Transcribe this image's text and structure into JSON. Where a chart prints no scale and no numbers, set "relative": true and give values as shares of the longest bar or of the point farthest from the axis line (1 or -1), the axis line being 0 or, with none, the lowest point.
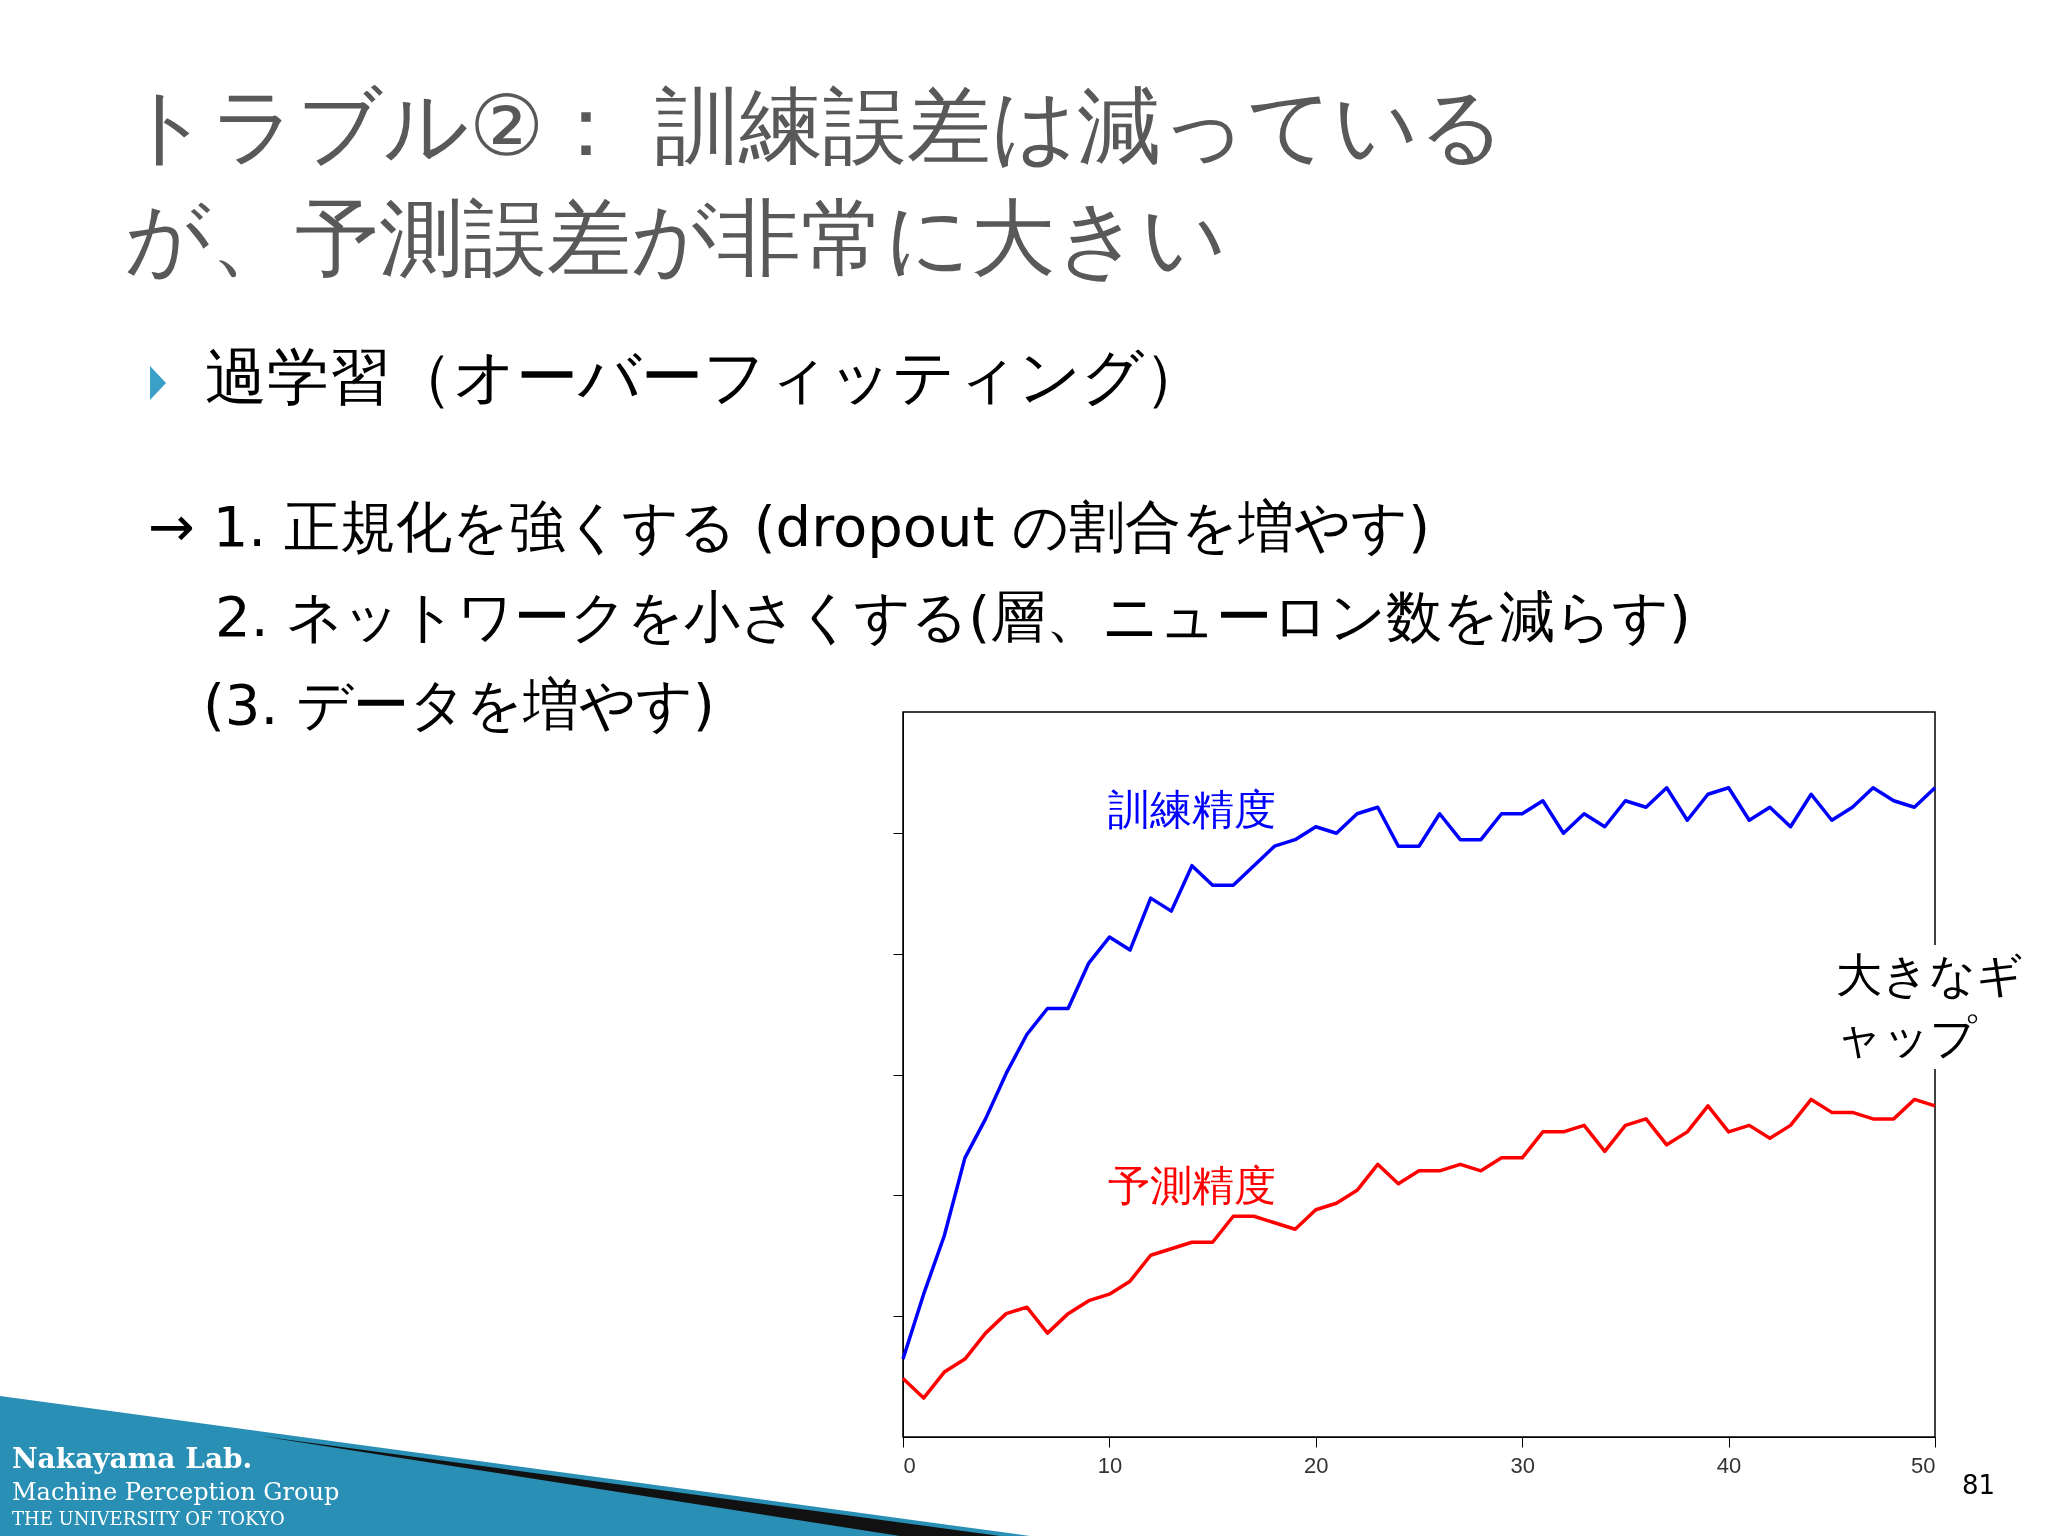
{
  "chart_data": {
    "type": "line",
    "title": "トラブル②： 訓練誤差は減っているが、予測誤差が非常に大きい",
    "annotations": [
      "過学習（オーバーフィッティング）",
      "→ 1. 正規化を強くする (dropout の割合を増やす)",
      "2. ネットワークを小さくする(層、ニューロン数を減らす)",
      "(3. データを増やす)",
      "大きなギャップ",
      "Nakayama Lab.",
      "Machine Perception Group",
      "THE UNIVERSITY OF TOKYO",
      "81"
    ],
    "x": [
      0,
      1,
      2,
      3,
      4,
      5,
      6,
      7,
      8,
      9,
      10,
      11,
      12,
      13,
      14,
      15,
      16,
      17,
      18,
      19,
      20,
      21,
      22,
      23,
      24,
      25,
      26,
      27,
      28,
      29,
      30,
      31,
      32,
      33,
      34,
      35,
      36,
      37,
      38,
      39,
      40,
      41,
      42,
      43,
      44,
      45,
      46,
      47,
      48,
      49,
      50
    ],
    "xlim": [
      0,
      50
    ],
    "xticks": [
      0,
      10,
      20,
      30,
      40,
      50
    ],
    "relative": true,
    "series": [
      {
        "name": "訓練精度",
        "color": "#0000ff",
        "values": [
          0.12,
          0.22,
          0.31,
          0.43,
          0.49,
          0.56,
          0.62,
          0.66,
          0.66,
          0.73,
          0.77,
          0.75,
          0.83,
          0.81,
          0.88,
          0.85,
          0.85,
          0.88,
          0.91,
          0.92,
          0.94,
          0.93,
          0.96,
          0.97,
          0.91,
          0.91,
          0.96,
          0.92,
          0.92,
          0.96,
          0.96,
          0.98,
          0.93,
          0.96,
          0.94,
          0.98,
          0.97,
          1.0,
          0.95,
          0.99,
          1.0,
          0.95,
          0.97,
          0.94,
          0.99,
          0.95,
          0.97,
          1.0,
          0.98,
          0.97,
          1.0
        ]
      },
      {
        "name": "予測精度",
        "color": "#ff0000",
        "values": [
          0.09,
          0.06,
          0.1,
          0.12,
          0.16,
          0.19,
          0.2,
          0.16,
          0.19,
          0.21,
          0.22,
          0.24,
          0.28,
          0.29,
          0.3,
          0.3,
          0.34,
          0.34,
          0.33,
          0.32,
          0.35,
          0.36,
          0.38,
          0.42,
          0.39,
          0.41,
          0.41,
          0.42,
          0.41,
          0.43,
          0.43,
          0.47,
          0.47,
          0.48,
          0.44,
          0.48,
          0.49,
          0.45,
          0.47,
          0.51,
          0.47,
          0.48,
          0.46,
          0.48,
          0.52,
          0.5,
          0.5,
          0.49,
          0.49,
          0.52,
          0.51
        ]
      }
    ]
  }
}
